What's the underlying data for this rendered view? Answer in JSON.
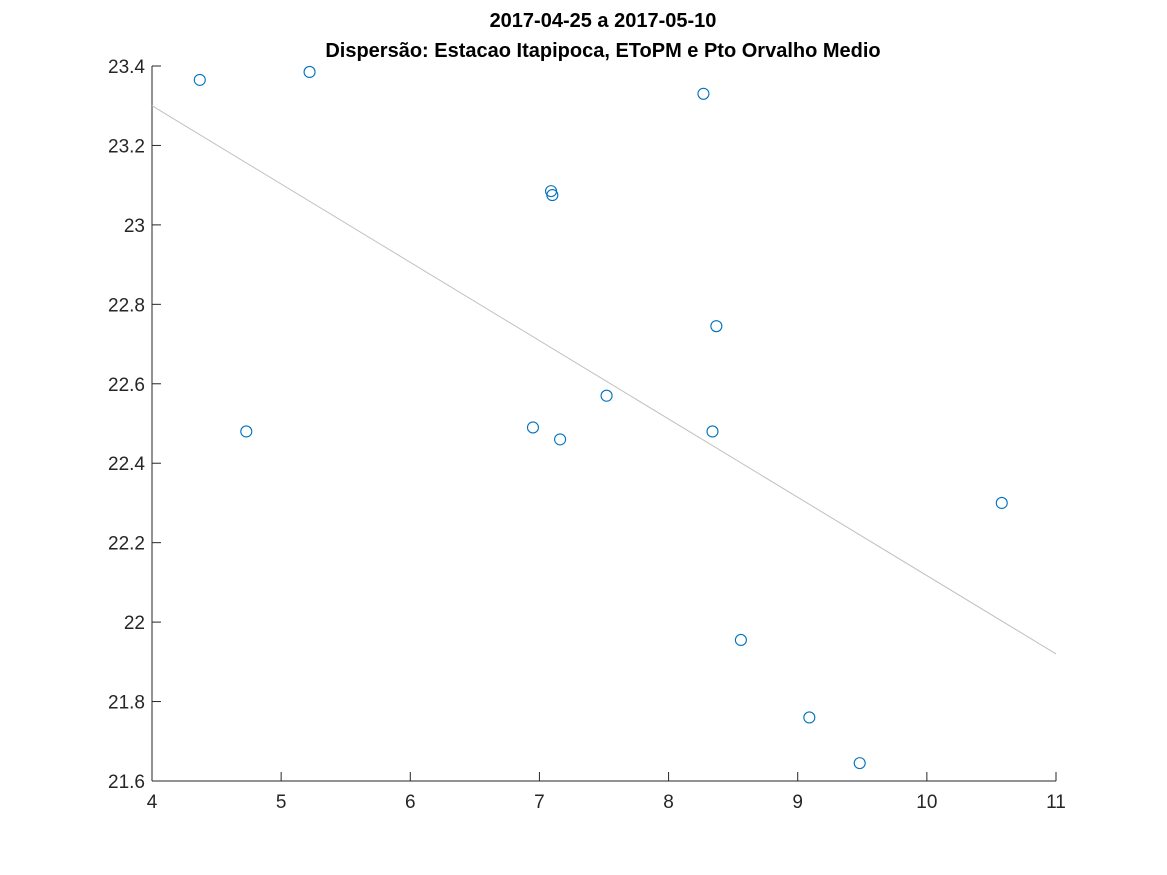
{
  "chart_data": {
    "type": "scatter",
    "title": "2017-04-25 a 2017-05-10",
    "subtitle": "Dispersão: Estacao Itapipoca, EToPM e Pto Orvalho Medio",
    "xlabel": "",
    "ylabel": "",
    "xlim": [
      4,
      11
    ],
    "ylim": [
      21.6,
      23.4
    ],
    "grid": false,
    "x_ticks": [
      4,
      5,
      6,
      7,
      8,
      9,
      10,
      11
    ],
    "x_tick_labels": [
      "4",
      "5",
      "6",
      "7",
      "8",
      "9",
      "10",
      "11"
    ],
    "y_ticks": [
      21.6,
      21.8,
      22,
      22.2,
      22.4,
      22.6,
      22.8,
      23,
      23.2,
      23.4
    ],
    "y_tick_labels": [
      "21.6",
      "21.8",
      "22",
      "22.2",
      "22.4",
      "22.6",
      "22.8",
      "23",
      "23.2",
      "23.4"
    ],
    "series": [
      {
        "marker": "circle",
        "color": "#0072BD",
        "points": [
          [
            4.37,
            23.365
          ],
          [
            5.22,
            23.385
          ],
          [
            4.73,
            22.48
          ],
          [
            6.95,
            22.49
          ],
          [
            7.09,
            23.085
          ],
          [
            7.1,
            23.075
          ],
          [
            7.16,
            22.46
          ],
          [
            7.52,
            22.57
          ],
          [
            8.27,
            23.33
          ],
          [
            8.34,
            22.48
          ],
          [
            8.37,
            22.745
          ],
          [
            8.56,
            21.955
          ],
          [
            9.09,
            21.76
          ],
          [
            9.48,
            21.645
          ],
          [
            10.58,
            22.3
          ]
        ]
      }
    ],
    "fit_line": {
      "color": "#C0C0C0",
      "x": [
        4,
        11
      ],
      "y": [
        23.3,
        21.92
      ]
    }
  }
}
